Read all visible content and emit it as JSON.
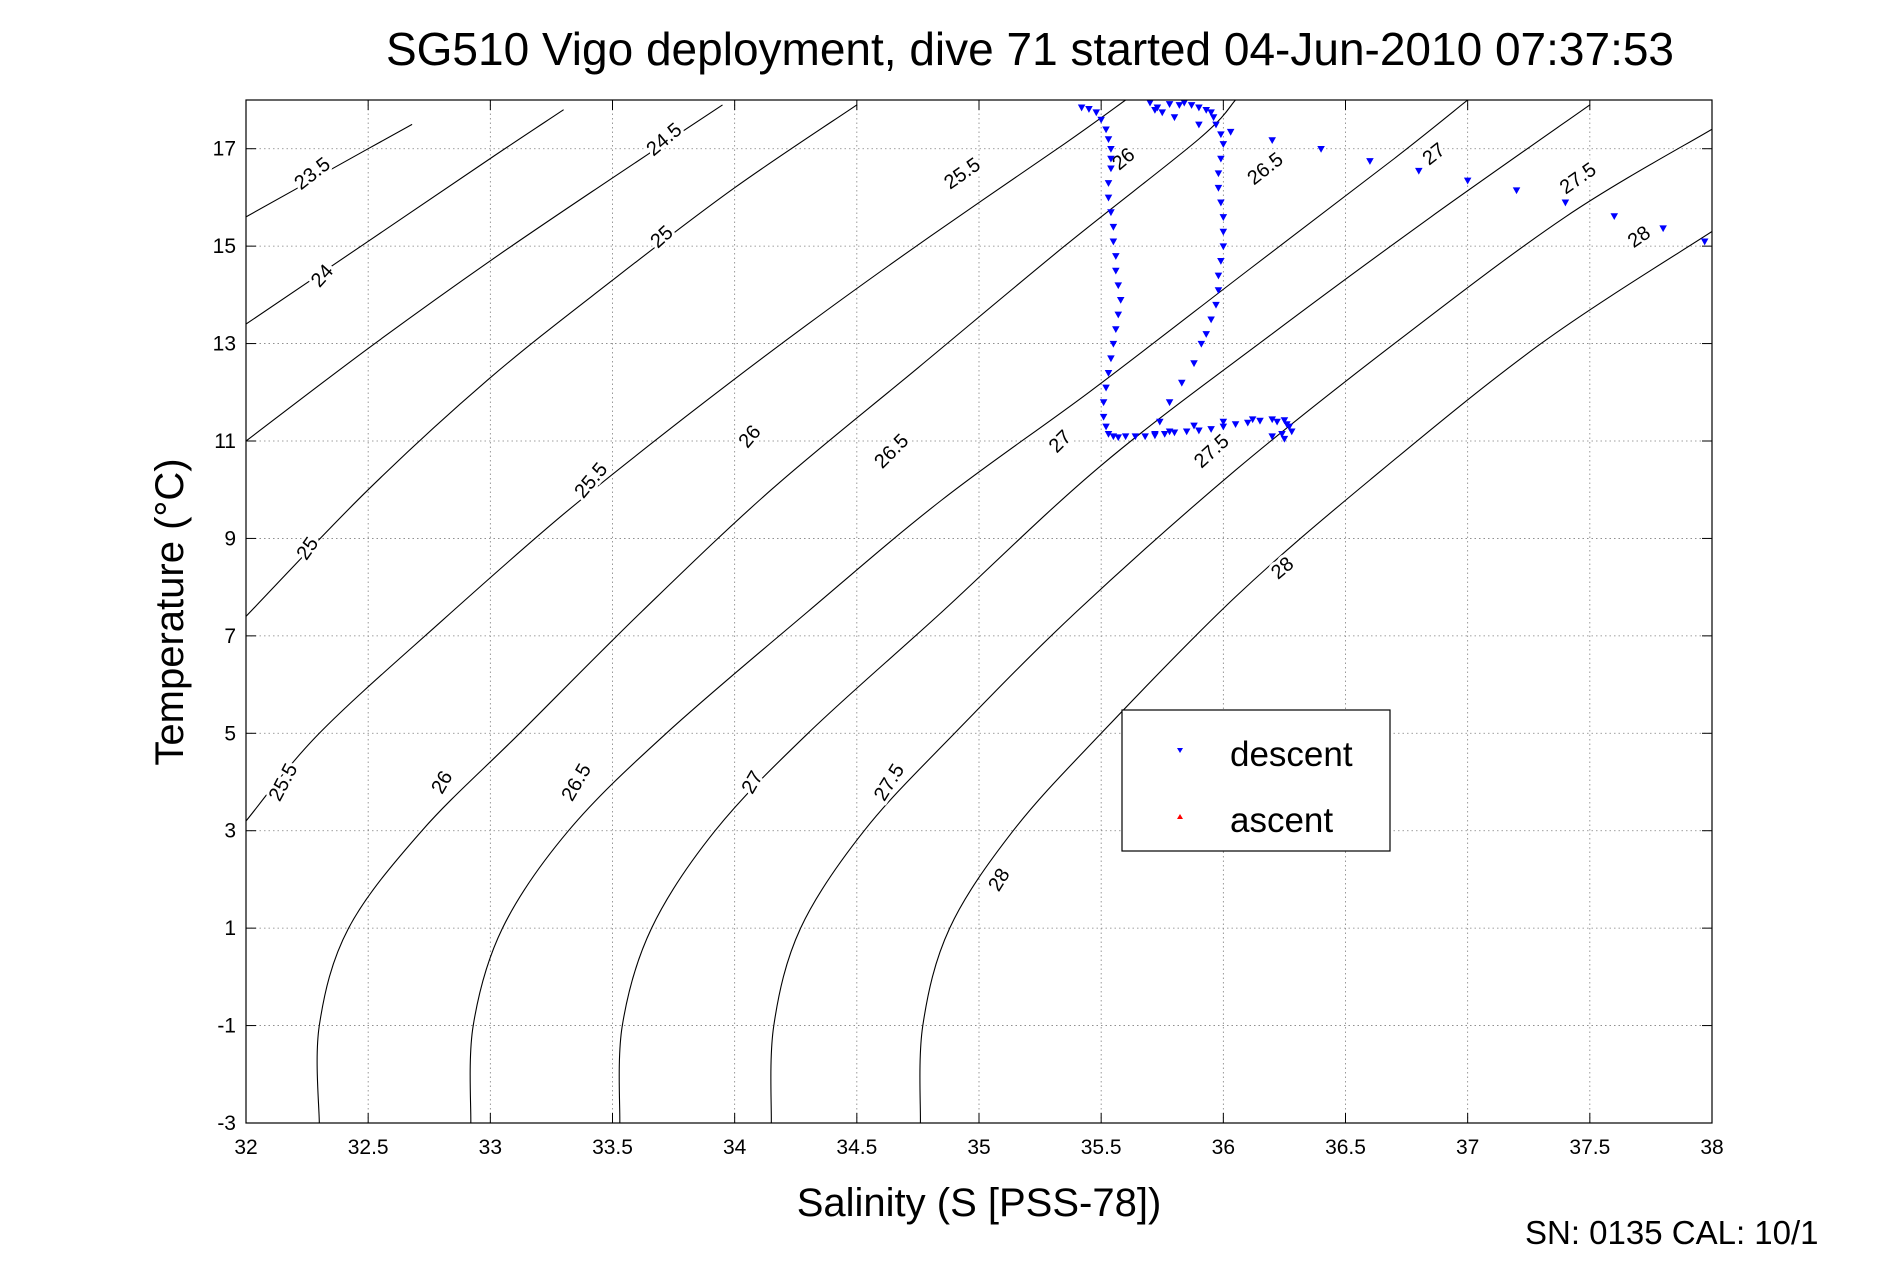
{
  "chart_data": {
    "type": "scatter",
    "title": "SG510 Vigo deployment, dive 71 started 04-Jun-2010 07:37:53",
    "xlabel": "Salinity (S [PSS-78])",
    "ylabel": "Temperature (°C)",
    "xlim": [
      32,
      38
    ],
    "ylim": [
      -3,
      18
    ],
    "x_ticks": [
      32,
      32.5,
      33,
      33.5,
      34,
      34.5,
      35,
      35.5,
      36,
      36.5,
      37,
      37.5,
      38
    ],
    "x_tick_labels": [
      "32",
      "32.5",
      "33",
      "33.5",
      "34",
      "34.5",
      "35",
      "35.5",
      "36",
      "36.5",
      "37",
      "37.5",
      "38"
    ],
    "y_ticks": [
      -3,
      -1,
      1,
      3,
      5,
      7,
      9,
      11,
      13,
      15,
      17
    ],
    "y_tick_labels": [
      "-3",
      "-1",
      "1",
      "3",
      "5",
      "7",
      "9",
      "11",
      "13",
      "15",
      "17"
    ],
    "grid": true,
    "legend_position": "lower-right",
    "colors": {
      "descent": "#0000ff",
      "ascent": "#ff0000",
      "contour": "#000000",
      "grid": "#808080"
    },
    "contours": [
      {
        "label": "23.5",
        "points": [
          [
            32,
            15.6
          ],
          [
            32.5,
            17.0
          ],
          [
            32.68,
            17.5
          ]
        ]
      },
      {
        "label": "24",
        "points": [
          [
            32,
            13.4
          ],
          [
            32.5,
            15.1
          ],
          [
            33,
            16.8
          ],
          [
            33.3,
            17.8
          ]
        ]
      },
      {
        "label": "24.5",
        "points": [
          [
            32,
            11.0
          ],
          [
            32.5,
            12.9
          ],
          [
            33,
            14.7
          ],
          [
            33.5,
            16.4
          ],
          [
            33.95,
            17.9
          ]
        ]
      },
      {
        "label": "25",
        "points": [
          [
            32,
            7.4
          ],
          [
            32.5,
            10.0
          ],
          [
            33,
            12.3
          ],
          [
            33.5,
            14.3
          ],
          [
            34,
            16.2
          ],
          [
            34.5,
            17.9
          ]
        ]
      },
      {
        "label": "25.5",
        "points": [
          [
            32,
            3.2
          ],
          [
            32.3,
            5.0
          ],
          [
            32.8,
            7.3
          ],
          [
            33.3,
            9.5
          ],
          [
            33.8,
            11.5
          ],
          [
            34.3,
            13.4
          ],
          [
            34.8,
            15.2
          ],
          [
            35.35,
            17.1
          ],
          [
            35.6,
            18.0
          ]
        ]
      },
      {
        "label": "26",
        "points": [
          [
            32.3,
            -3
          ],
          [
            32.3,
            -1
          ],
          [
            32.42,
            1
          ],
          [
            32.72,
            3
          ],
          [
            33.12,
            5
          ],
          [
            33.62,
            7.5
          ],
          [
            34.15,
            10
          ],
          [
            34.75,
            12.5
          ],
          [
            35.35,
            15
          ],
          [
            35.9,
            17.2
          ],
          [
            36.05,
            18.0
          ]
        ]
      },
      {
        "label": "26.5",
        "points": [
          [
            32.92,
            -3
          ],
          [
            32.93,
            -1
          ],
          [
            33.05,
            1
          ],
          [
            33.32,
            3
          ],
          [
            33.72,
            5
          ],
          [
            34.3,
            7.5
          ],
          [
            34.85,
            9.8
          ],
          [
            35.45,
            12
          ],
          [
            36.1,
            14.5
          ],
          [
            36.7,
            16.8
          ],
          [
            37.0,
            18.0
          ]
        ]
      },
      {
        "label": "27",
        "points": [
          [
            33.53,
            -3
          ],
          [
            33.54,
            -1
          ],
          [
            33.66,
            1
          ],
          [
            33.92,
            3
          ],
          [
            34.3,
            5
          ],
          [
            34.85,
            7.5
          ],
          [
            35.5,
            10.5
          ],
          [
            36.2,
            13.2
          ],
          [
            36.85,
            15.6
          ],
          [
            37.5,
            17.9
          ]
        ]
      },
      {
        "label": "27.5",
        "points": [
          [
            34.15,
            -3
          ],
          [
            34.16,
            -1
          ],
          [
            34.27,
            1
          ],
          [
            34.53,
            3
          ],
          [
            34.9,
            5
          ],
          [
            35.4,
            7.5
          ],
          [
            36.05,
            10.4
          ],
          [
            36.7,
            13
          ],
          [
            37.4,
            15.6
          ],
          [
            38,
            17.4
          ]
        ]
      },
      {
        "label": "28",
        "points": [
          [
            34.76,
            -3
          ],
          [
            34.77,
            -1
          ],
          [
            34.88,
            1
          ],
          [
            35.14,
            3
          ],
          [
            35.5,
            5
          ],
          [
            36.05,
            7.8
          ],
          [
            36.6,
            10.2
          ],
          [
            37.3,
            13
          ],
          [
            38,
            15.3
          ]
        ]
      }
    ],
    "contour_labels": [
      {
        "text": "23.5",
        "x": 32.27,
        "y": 16.5,
        "angle": -38
      },
      {
        "text": "24",
        "x": 32.31,
        "y": 14.4,
        "angle": -48
      },
      {
        "text": "25",
        "x": 32.25,
        "y": 8.8,
        "angle": -55
      },
      {
        "text": "25.5",
        "x": 32.15,
        "y": 4.0,
        "angle": -62
      },
      {
        "text": "24.5",
        "x": 33.71,
        "y": 17.2,
        "angle": -40
      },
      {
        "text": "25",
        "x": 33.7,
        "y": 15.2,
        "angle": -42
      },
      {
        "text": "25.5",
        "x": 33.41,
        "y": 10.2,
        "angle": -50
      },
      {
        "text": "26",
        "x": 32.8,
        "y": 4.0,
        "angle": -60
      },
      {
        "text": "25.5",
        "x": 34.93,
        "y": 16.5,
        "angle": -35
      },
      {
        "text": "26",
        "x": 34.06,
        "y": 11.1,
        "angle": -50
      },
      {
        "text": "26.5",
        "x": 33.35,
        "y": 4.0,
        "angle": -60
      },
      {
        "text": "26",
        "x": 35.59,
        "y": 16.8,
        "angle": -40
      },
      {
        "text": "26.5",
        "x": 34.64,
        "y": 10.8,
        "angle": -45
      },
      {
        "text": "27",
        "x": 34.07,
        "y": 4.0,
        "angle": -60
      },
      {
        "text": "26.5",
        "x": 36.17,
        "y": 16.6,
        "angle": -38
      },
      {
        "text": "27",
        "x": 35.33,
        "y": 11.0,
        "angle": -45
      },
      {
        "text": "27.5",
        "x": 34.63,
        "y": 4.0,
        "angle": -58
      },
      {
        "text": "27",
        "x": 36.86,
        "y": 16.9,
        "angle": -38
      },
      {
        "text": "27.5",
        "x": 35.95,
        "y": 10.8,
        "angle": -42
      },
      {
        "text": "28",
        "x": 35.08,
        "y": 2.0,
        "angle": -58
      },
      {
        "text": "27.5",
        "x": 37.45,
        "y": 16.4,
        "angle": -35
      },
      {
        "text": "28",
        "x": 36.24,
        "y": 8.4,
        "angle": -40
      },
      {
        "text": "28",
        "x": 37.7,
        "y": 15.2,
        "angle": -35
      }
    ],
    "series": [
      {
        "name": "descent",
        "marker": "triangle-down",
        "color": "#0000ff",
        "x": [
          35.42,
          35.45,
          35.48,
          35.5,
          35.52,
          35.53,
          35.54,
          35.54,
          35.54,
          35.53,
          35.53,
          35.54,
          35.55,
          35.55,
          35.56,
          35.56,
          35.57,
          35.58,
          35.57,
          35.56,
          35.55,
          35.54,
          35.53,
          35.52,
          35.51,
          35.51,
          35.52,
          35.53,
          35.55,
          35.57,
          35.6,
          35.64,
          35.68,
          35.72,
          35.76,
          35.8,
          35.85,
          35.9,
          35.95,
          36.0,
          36.05,
          36.1,
          36.15,
          36.2,
          36.25,
          36.27,
          36.24,
          36.2,
          36.25,
          36.28,
          36.26,
          36.22,
          36.12,
          36.0,
          35.88,
          35.78,
          35.72,
          35.74,
          35.78,
          35.83,
          35.88,
          35.91,
          35.93,
          35.95,
          35.97,
          35.98,
          35.98,
          35.99,
          36.0,
          36.0,
          36.0,
          35.99,
          35.98,
          35.98,
          35.99,
          36.0,
          35.99,
          35.97,
          35.96,
          35.95,
          35.93,
          35.9,
          35.87,
          35.84,
          35.82,
          35.78,
          35.73,
          35.7,
          35.72,
          35.75,
          35.8,
          35.9,
          36.03,
          36.2,
          36.4,
          36.6,
          36.8,
          37.0,
          37.2,
          37.4,
          37.6,
          37.8,
          37.97
        ],
        "y": [
          17.85,
          17.82,
          17.75,
          17.6,
          17.4,
          17.2,
          17.0,
          16.8,
          16.6,
          16.3,
          16.0,
          15.7,
          15.4,
          15.1,
          14.8,
          14.5,
          14.2,
          13.9,
          13.6,
          13.3,
          13.0,
          12.7,
          12.4,
          12.1,
          11.8,
          11.5,
          11.3,
          11.15,
          11.1,
          11.08,
          11.1,
          11.1,
          11.1,
          11.12,
          11.15,
          11.18,
          11.2,
          11.22,
          11.25,
          11.3,
          11.35,
          11.38,
          11.42,
          11.45,
          11.43,
          11.3,
          11.15,
          11.1,
          11.05,
          11.2,
          11.35,
          11.4,
          11.45,
          11.4,
          11.32,
          11.2,
          11.15,
          11.4,
          11.8,
          12.2,
          12.6,
          13.0,
          13.2,
          13.5,
          13.8,
          14.1,
          14.4,
          14.7,
          15.0,
          15.3,
          15.6,
          15.9,
          16.2,
          16.5,
          16.8,
          17.1,
          17.3,
          17.5,
          17.65,
          17.75,
          17.8,
          17.85,
          17.9,
          17.95,
          17.9,
          17.92,
          17.85,
          17.95,
          17.8,
          17.75,
          17.65,
          17.5,
          17.35,
          17.18,
          17.0,
          16.75,
          16.55,
          16.35,
          16.15,
          15.9,
          15.62,
          15.37,
          15.1
        ]
      },
      {
        "name": "ascent",
        "marker": "triangle-up",
        "color": "#ff0000",
        "x": [],
        "y": []
      }
    ],
    "legend": [
      {
        "label": "descent",
        "color": "#0000ff",
        "marker": "triangle-down"
      },
      {
        "label": "ascent",
        "color": "#ff0000",
        "marker": "triangle-up"
      }
    ]
  },
  "footer": "SN: 0135  CAL: 10/1"
}
